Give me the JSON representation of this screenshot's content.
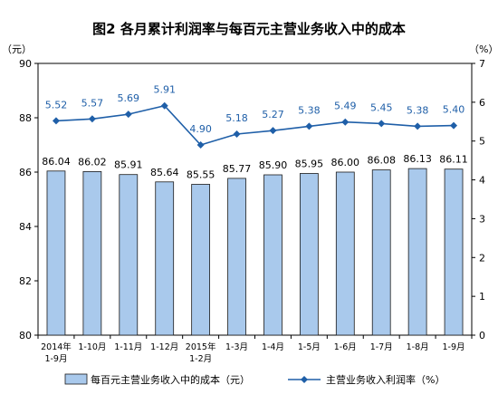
{
  "chart_data": {
    "type": "bar+line",
    "title": "图2  各月累计利润率与每百元主营业务收入中的成本",
    "categories": [
      [
        "2014年",
        "1-9月"
      ],
      [
        "1-10月"
      ],
      [
        "1-11月"
      ],
      [
        "1-12月"
      ],
      [
        "2015年",
        "1-2月"
      ],
      [
        "1-3月"
      ],
      [
        "1-4月"
      ],
      [
        "1-5月"
      ],
      [
        "1-6月"
      ],
      [
        "1-7月"
      ],
      [
        "1-8月"
      ],
      [
        "1-9月"
      ]
    ],
    "left_axis": {
      "unit": "（元）",
      "min": 80,
      "max": 90,
      "ticks": [
        "80",
        "82",
        "84",
        "86",
        "88",
        "90"
      ]
    },
    "right_axis": {
      "unit": "（%）",
      "min": 0,
      "max": 7,
      "ticks": [
        "0",
        "1",
        "2",
        "3",
        "4",
        "5",
        "6",
        "7"
      ]
    },
    "series": [
      {
        "name": "每百元主营业务收入中的成本（元）",
        "type": "bar",
        "axis": "left",
        "color": "#a9c9ec",
        "values": [
          86.04,
          86.02,
          85.91,
          85.64,
          85.55,
          85.77,
          85.9,
          85.95,
          86.0,
          86.08,
          86.13,
          86.11
        ],
        "labels": [
          "86.04",
          "86.02",
          "85.91",
          "85.64",
          "85.55",
          "85.77",
          "85.90",
          "85.95",
          "86.00",
          "86.08",
          "86.13",
          "86.11"
        ]
      },
      {
        "name": "主营业务收入利润率（%）",
        "type": "line",
        "axis": "right",
        "color": "#1f5fa8",
        "values": [
          5.52,
          5.57,
          5.69,
          5.91,
          4.9,
          5.18,
          5.27,
          5.38,
          5.49,
          5.45,
          5.38,
          5.4
        ],
        "labels": [
          "5.52",
          "5.57",
          "5.69",
          "5.91",
          "4.90",
          "5.18",
          "5.27",
          "5.38",
          "5.49",
          "5.45",
          "5.38",
          "5.40"
        ]
      }
    ],
    "legend_placement": "bottom",
    "grid": false
  }
}
